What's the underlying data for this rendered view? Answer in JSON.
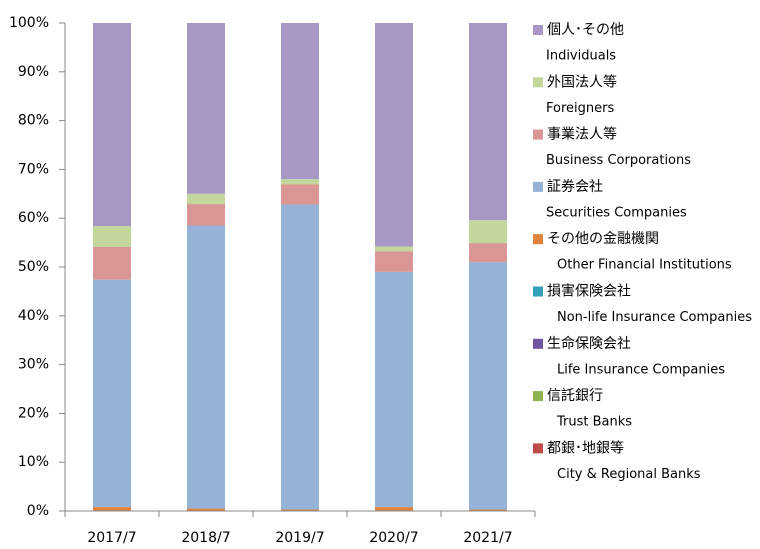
{
  "chart_data": {
    "type": "stacked_bar",
    "categories": [
      "2017/7",
      "2018/7",
      "2019/7",
      "2020/7",
      "2021/7"
    ],
    "series": [
      {
        "name": "都銀･地銀等",
        "name_en": "City & Regional Banks",
        "color": "#be4b48",
        "values": [
          0,
          0,
          0,
          0,
          0
        ]
      },
      {
        "name": "信託銀行",
        "name_en": "Trust Banks",
        "color": "#8fb150",
        "values": [
          0,
          0,
          0,
          0,
          0
        ]
      },
      {
        "name": "生命保険会社",
        "name_en": "Life Insurance Companies",
        "color": "#7153a0",
        "values": [
          0,
          0,
          0,
          0,
          0
        ]
      },
      {
        "name": "損害保険会社",
        "name_en": "Non-life Insurance Companies",
        "color": "#31a0b8",
        "values": [
          0,
          0,
          0,
          0,
          0
        ]
      },
      {
        "name": "その他の金融機関",
        "name_en": "Other Financial Institutions",
        "color": "#e0823c",
        "values": [
          0.8,
          0.5,
          0.3,
          0.8,
          0.3
        ]
      },
      {
        "name": "証券会社",
        "name_en": "Securities Companies",
        "color": "#95b3d7",
        "values": [
          46.6,
          58,
          62.5,
          48.2,
          50.7
        ]
      },
      {
        "name": "事業法人等",
        "name_en": "Business Corporations",
        "color": "#d99694",
        "values": [
          6.7,
          4.4,
          4.1,
          4.2,
          3.9
        ]
      },
      {
        "name": "外国法人等",
        "name_en": "Foreigners",
        "color": "#c3d69b",
        "values": [
          4.3,
          2.1,
          1.1,
          1.0,
          4.7
        ]
      },
      {
        "name": "個人･その他",
        "name_en": "Individuals",
        "color": "#a897c4",
        "values": [
          41.6,
          35,
          32,
          45.8,
          40.4
        ]
      }
    ],
    "ylim": [
      0,
      100
    ],
    "yticks": [
      {
        "value": 0,
        "label": "0%"
      },
      {
        "value": 10,
        "label": "10%"
      },
      {
        "value": 20,
        "label": "20%"
      },
      {
        "value": 30,
        "label": "30%"
      },
      {
        "value": 40,
        "label": "40%"
      },
      {
        "value": 50,
        "label": "50%"
      },
      {
        "value": 60,
        "label": "60%"
      },
      {
        "value": 70,
        "label": "70%"
      },
      {
        "value": 80,
        "label": "80%"
      },
      {
        "value": 90,
        "label": "90%"
      },
      {
        "value": 100,
        "label": "100%"
      }
    ],
    "legend": "right"
  }
}
